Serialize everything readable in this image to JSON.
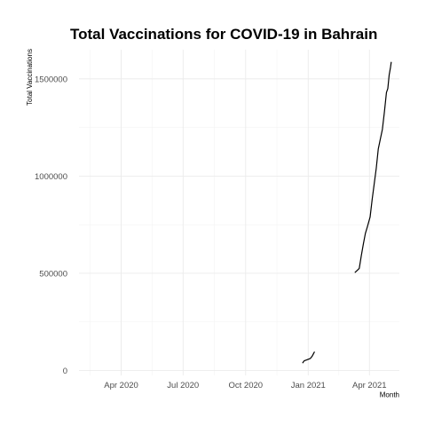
{
  "chart_data": {
    "type": "line",
    "title": "Total Vaccinations for COVID-19 in Bahrain",
    "xlabel": "Month",
    "ylabel": "Total Vaccinations",
    "x_tick_labels": [
      "Apr 2020",
      "Jul 2020",
      "Oct 2020",
      "Jan 2021",
      "Apr 2021"
    ],
    "x_tick_dates": [
      "2020-04-01",
      "2020-07-01",
      "2020-10-01",
      "2021-01-01",
      "2021-04-01"
    ],
    "y_tick_labels": [
      "0",
      "500000",
      "1000000",
      "1500000"
    ],
    "y_ticks": [
      0,
      500000,
      1000000,
      1500000
    ],
    "xlim": [
      "2020-01-30",
      "2021-05-15"
    ],
    "ylim": [
      -25000,
      1650000
    ],
    "grid": true,
    "legend": "none",
    "series": [
      {
        "segments": [
          [
            {
              "date": "2020-12-24",
              "value": 40000
            },
            {
              "date": "2020-12-26",
              "value": 50000
            },
            {
              "date": "2020-12-30",
              "value": 55000
            },
            {
              "date": "2021-01-04",
              "value": 62000
            },
            {
              "date": "2021-01-07",
              "value": 75000
            },
            {
              "date": "2021-01-10",
              "value": 95000
            }
          ],
          [
            {
              "date": "2021-03-11",
              "value": 505000
            },
            {
              "date": "2021-03-14",
              "value": 515000
            },
            {
              "date": "2021-03-17",
              "value": 525000
            },
            {
              "date": "2021-03-20",
              "value": 590000
            },
            {
              "date": "2021-03-23",
              "value": 650000
            },
            {
              "date": "2021-03-26",
              "value": 705000
            },
            {
              "date": "2021-03-29",
              "value": 740000
            },
            {
              "date": "2021-04-02",
              "value": 790000
            },
            {
              "date": "2021-04-05",
              "value": 880000
            },
            {
              "date": "2021-04-08",
              "value": 960000
            },
            {
              "date": "2021-04-11",
              "value": 1040000
            },
            {
              "date": "2021-04-14",
              "value": 1140000
            },
            {
              "date": "2021-04-17",
              "value": 1190000
            },
            {
              "date": "2021-04-20",
              "value": 1240000
            },
            {
              "date": "2021-04-23",
              "value": 1330000
            },
            {
              "date": "2021-04-26",
              "value": 1430000
            },
            {
              "date": "2021-04-28",
              "value": 1450000
            },
            {
              "date": "2021-04-30",
              "value": 1520000
            },
            {
              "date": "2021-05-02",
              "value": 1560000
            },
            {
              "date": "2021-05-03",
              "value": 1585000
            }
          ]
        ]
      }
    ]
  }
}
